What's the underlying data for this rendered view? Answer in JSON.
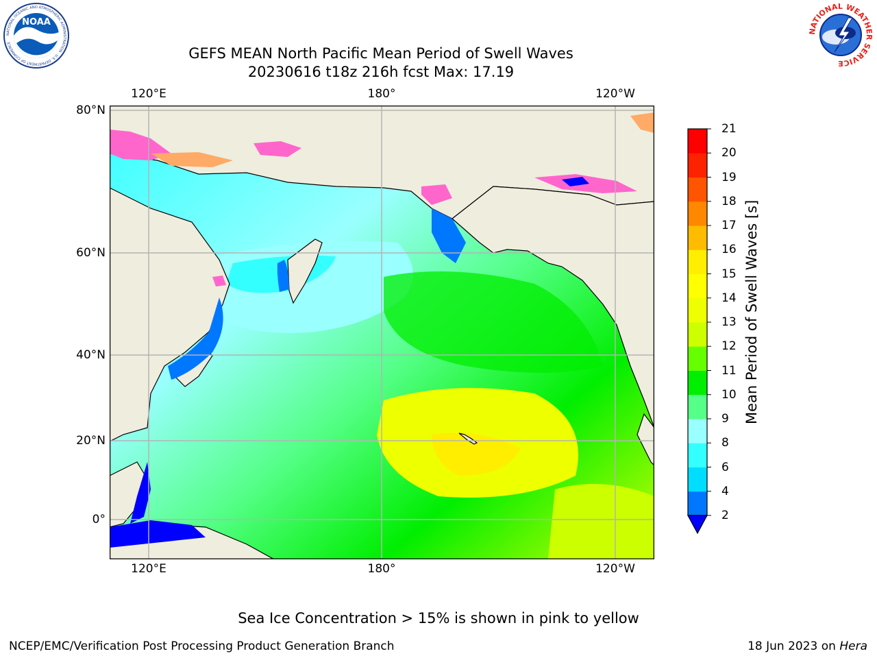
{
  "header": {
    "title_line1": "GEFS MEAN North Pacific Mean Period of Swell Waves",
    "title_line2": "20230616 t18z 216h fcst   Max: 17.19",
    "noaa_logo_text": "NOAA",
    "noaa_ring_text": "NATIONAL OCEANIC AND ATMOSPHERIC ADMINISTRATION · U.S. DEPARTMENT OF COMMERCE",
    "nws_ring_text": "NATIONAL WEATHER SERVICE"
  },
  "map": {
    "lon_labels_top": [
      "120°E",
      "180°",
      "120°W"
    ],
    "lon_labels_bottom": [
      "120°E",
      "180°",
      "120°W"
    ],
    "lat_labels": [
      "80°N",
      "60°N",
      "40°N",
      "20°N",
      "0°"
    ],
    "colors": {
      "land": "#efedde",
      "grid": "#b4b4b4",
      "coast": "#000000",
      "ice_pink": "#ff66cc",
      "ice_orange": "#ffaa66"
    }
  },
  "colorbar": {
    "title": "Mean Period of Swell Waves [s]",
    "ticks": [
      "2",
      "4",
      "6",
      "8",
      "9",
      "10",
      "11",
      "12",
      "13",
      "14",
      "15",
      "16",
      "17",
      "18",
      "19",
      "20",
      "21"
    ],
    "colors": [
      "#0077ff",
      "#00ddff",
      "#33ffff",
      "#99ffff",
      "#55ff88",
      "#00ee00",
      "#66ff00",
      "#ccff00",
      "#eeff00",
      "#ffff00",
      "#ffee00",
      "#ffbb00",
      "#ff8800",
      "#ff5500",
      "#ff2200",
      "#ff0000"
    ],
    "under_color": "#0000ff"
  },
  "footer": {
    "sea_ice_note": "Sea Ice Concentration > 15% is shown in pink to yellow",
    "branch": "NCEP/EMC/Verification Post Processing Product Generation Branch",
    "date_prefix": "18 Jun 2023 on ",
    "machine": "Hera"
  }
}
